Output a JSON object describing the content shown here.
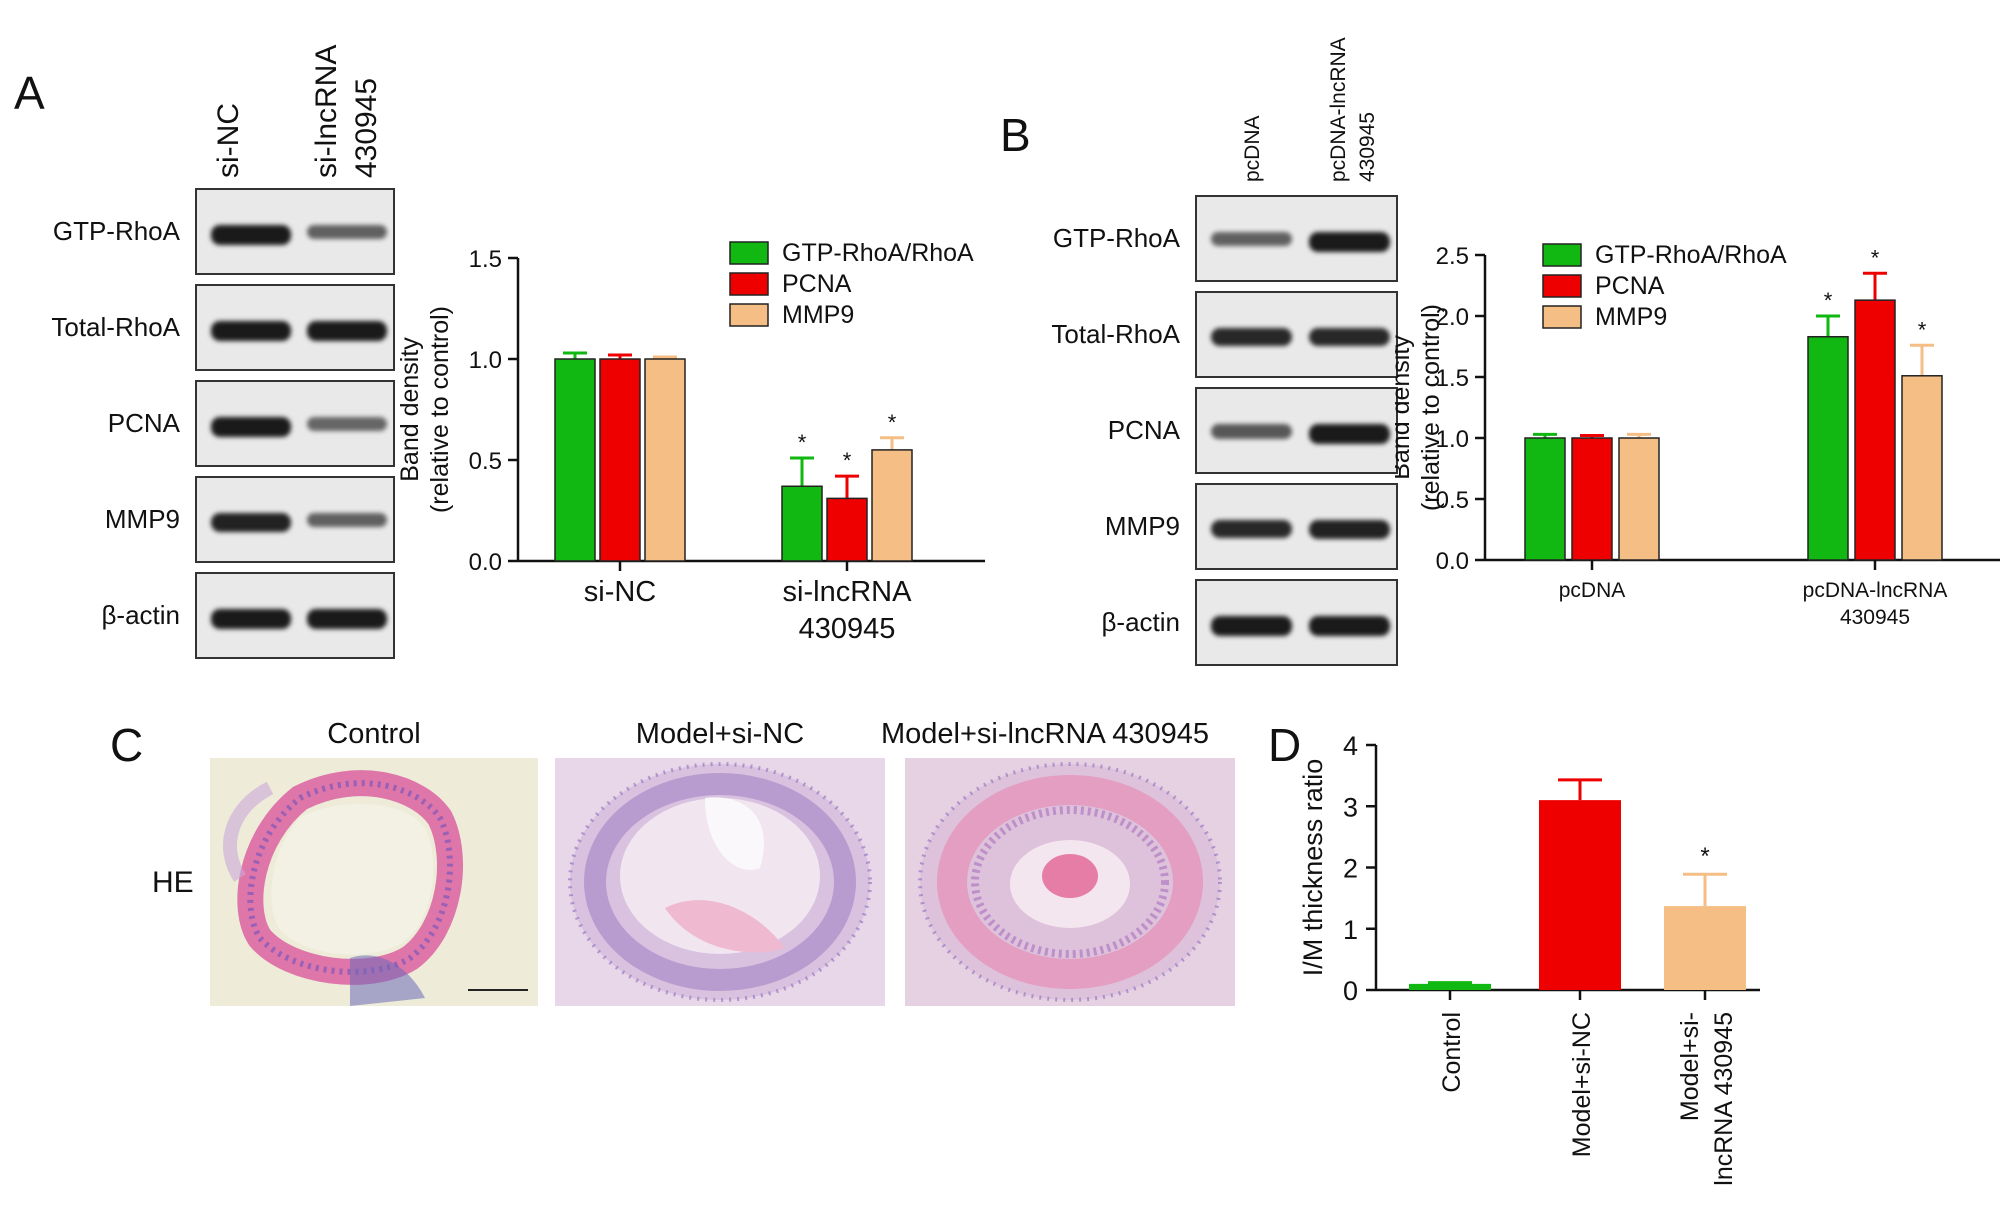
{
  "panels": {
    "A": {
      "letter": "A",
      "lanes": [
        "si-NC",
        "si-lncRNA",
        "430945"
      ],
      "blots": [
        {
          "label": "GTP-RhoA",
          "bands": [
            1.0,
            0.55
          ]
        },
        {
          "label": "Total-RhoA",
          "bands": [
            1.0,
            1.0
          ]
        },
        {
          "label": "PCNA",
          "bands": [
            1.0,
            0.5
          ]
        },
        {
          "label": "MMP9",
          "bands": [
            0.95,
            0.55
          ]
        },
        {
          "label": "β-actin",
          "bands": [
            1.0,
            1.0
          ]
        }
      ]
    },
    "B": {
      "letter": "B",
      "lanes": [
        "pcDNA",
        "pcDNA-lncRNA",
        "430945"
      ],
      "blots": [
        {
          "label": "GTP-RhoA",
          "bands": [
            0.55,
            1.0
          ]
        },
        {
          "label": "Total-RhoA",
          "bands": [
            0.9,
            0.9
          ]
        },
        {
          "label": "PCNA",
          "bands": [
            0.6,
            1.0
          ]
        },
        {
          "label": "MMP9",
          "bands": [
            0.9,
            0.95
          ]
        },
        {
          "label": "β-actin",
          "bands": [
            1.0,
            1.0
          ]
        }
      ]
    },
    "C": {
      "letter": "C",
      "row_label": "HE",
      "images": [
        "Control",
        "Model+si-NC",
        "Model+si-lncRNA 430945"
      ]
    },
    "D": {
      "letter": "D"
    }
  },
  "colors": {
    "green": "#12b812",
    "red": "#ee0000",
    "tan": "#f5be85"
  },
  "chart_data": [
    {
      "id": "A",
      "type": "bar",
      "ylabel": "Band density",
      "ylabel2": "(relative to control)",
      "ylim": [
        0,
        1.5
      ],
      "yticks": [
        "0.0",
        "0.5",
        "1.0",
        "1.5"
      ],
      "categories": [
        "si-NC",
        "si-lncRNA 430945"
      ],
      "category_lines": [
        [
          "si-NC"
        ],
        [
          "si-lncRNA",
          "430945"
        ]
      ],
      "series": [
        {
          "name": "GTP-RhoA/RhoA",
          "color": "#12b812",
          "values": [
            1.0,
            0.37
          ],
          "errors": [
            0.03,
            0.14
          ],
          "sig": [
            false,
            true
          ]
        },
        {
          "name": "PCNA",
          "color": "#ee0000",
          "values": [
            1.0,
            0.31
          ],
          "errors": [
            0.02,
            0.11
          ],
          "sig": [
            false,
            true
          ]
        },
        {
          "name": "MMP9",
          "color": "#f5be85",
          "values": [
            1.0,
            0.55
          ],
          "errors": [
            0.01,
            0.06
          ],
          "sig": [
            false,
            true
          ]
        }
      ],
      "sig_symbol": "*"
    },
    {
      "id": "B",
      "type": "bar",
      "ylabel": "Band density",
      "ylabel2": "(relative to control)",
      "ylim": [
        0,
        2.5
      ],
      "yticks": [
        "0.0",
        "0.5",
        "1.0",
        "1.5",
        "2.0",
        "2.5"
      ],
      "categories": [
        "pcDNA",
        "pcDNA-lncRNA 430945"
      ],
      "category_lines": [
        [
          "pcDNA"
        ],
        [
          "pcDNA-lncRNA",
          "430945"
        ]
      ],
      "series": [
        {
          "name": "GTP-RhoA/RhoA",
          "color": "#12b812",
          "values": [
            1.0,
            1.83
          ],
          "errors": [
            0.03,
            0.17
          ],
          "sig": [
            false,
            true
          ]
        },
        {
          "name": "PCNA",
          "color": "#ee0000",
          "values": [
            1.0,
            2.13
          ],
          "errors": [
            0.02,
            0.22
          ],
          "sig": [
            false,
            true
          ]
        },
        {
          "name": "MMP9",
          "color": "#f5be85",
          "values": [
            1.0,
            1.51
          ],
          "errors": [
            0.03,
            0.25
          ],
          "sig": [
            false,
            true
          ]
        }
      ],
      "sig_symbol": "*"
    },
    {
      "id": "D",
      "type": "bar",
      "ylabel": "I/M thickness ratio",
      "ylim": [
        0,
        4
      ],
      "yticks": [
        "0",
        "1",
        "2",
        "3",
        "4"
      ],
      "categories": [
        "Control",
        "Model+si-NC",
        "Model+si-lncRNA 430945"
      ],
      "category_lines": [
        [
          "Control"
        ],
        [
          "Model+si-NC"
        ],
        [
          "Model+si-",
          "lncRNA 430945"
        ]
      ],
      "values": [
        0.1,
        3.1,
        1.37
      ],
      "errors": [
        0.02,
        0.33,
        0.52
      ],
      "colors": [
        "#12b812",
        "#ee0000",
        "#f5be85"
      ],
      "sig": [
        false,
        false,
        true
      ],
      "sig_symbol": "*"
    }
  ]
}
